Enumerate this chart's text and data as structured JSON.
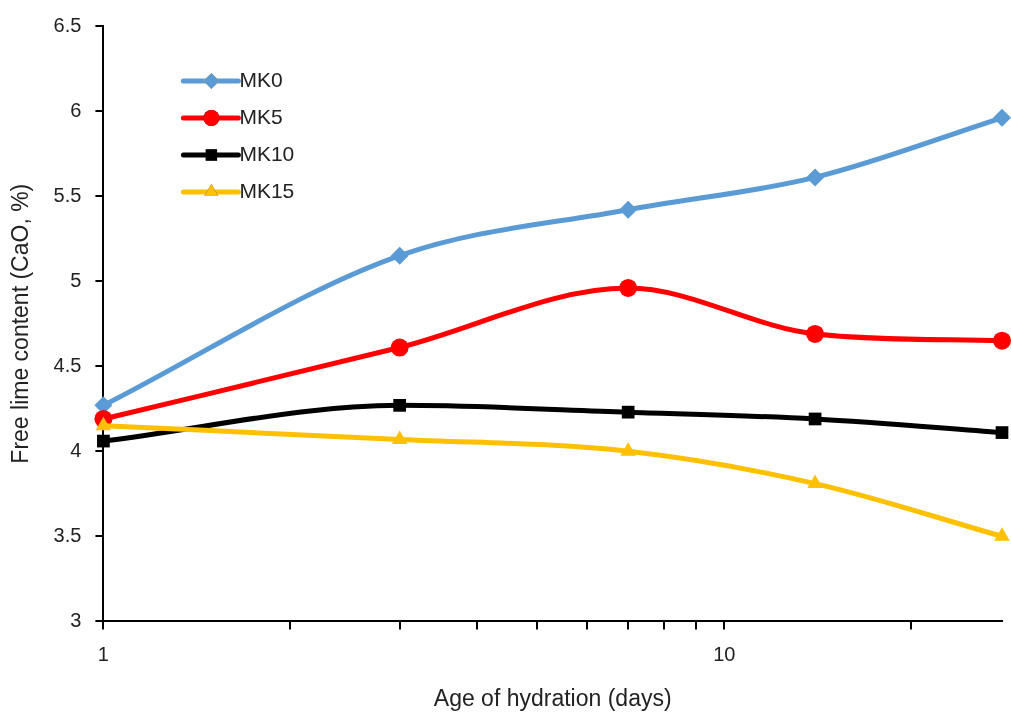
{
  "chart_data": {
    "type": "line",
    "xlabel": "Age of hydration (days)",
    "ylabel": "Free lime content (CaO, %)",
    "x": [
      1,
      3,
      7,
      14,
      28
    ],
    "series": [
      {
        "name": "MK0",
        "color": "#5b9bd5",
        "marker": "diamond",
        "values": [
          4.27,
          5.15,
          5.42,
          5.61,
          5.96
        ]
      },
      {
        "name": "MK5",
        "color": "#ff0000",
        "marker": "circle",
        "values": [
          4.19,
          4.61,
          4.96,
          4.69,
          4.65
        ]
      },
      {
        "name": "MK10",
        "color": "#000000",
        "marker": "square",
        "values": [
          4.06,
          4.27,
          4.23,
          4.19,
          4.11
        ]
      },
      {
        "name": "MK15",
        "color": "#ffc000",
        "marker": "triangle",
        "values": [
          4.15,
          4.07,
          4.0,
          3.81,
          3.5
        ]
      }
    ],
    "log": "x",
    "xlim": [
      1,
      28
    ],
    "xticks": [
      1,
      {
        "value": 2,
        "label": null
      },
      {
        "value": 3,
        "label": null
      },
      {
        "value": 4,
        "label": null
      },
      {
        "value": 5,
        "label": null
      },
      {
        "value": 6,
        "label": null
      },
      {
        "value": 7,
        "label": null
      },
      {
        "value": 8,
        "label": null
      },
      {
        "value": 9,
        "label": null
      },
      10,
      {
        "value": 20,
        "label": null
      }
    ],
    "ylim": [
      3,
      6.5
    ],
    "yticks": [
      3,
      3.5,
      4,
      4.5,
      5,
      5.5,
      6,
      6.5
    ],
    "grid": false,
    "legend": "top left",
    "line_style": "solid"
  }
}
